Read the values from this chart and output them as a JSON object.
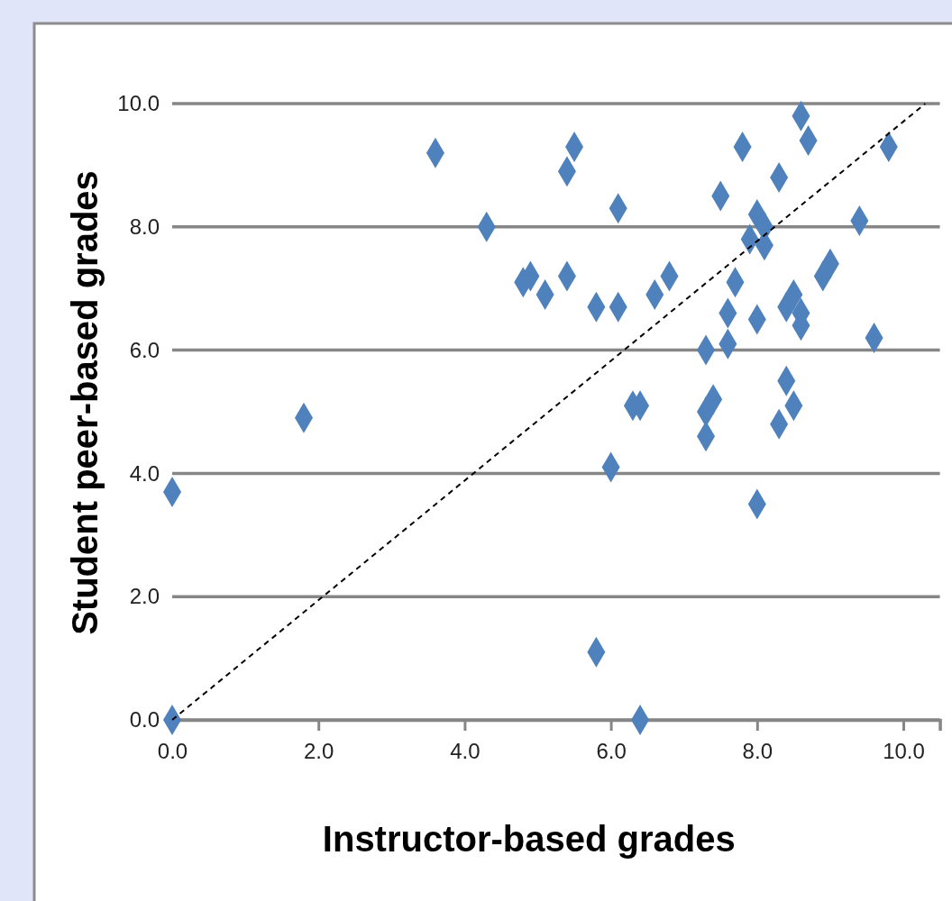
{
  "chart_data": {
    "type": "scatter",
    "xlabel": "Instructor-based grades",
    "ylabel": "Student peer-based grades",
    "xlim": [
      0,
      10.5
    ],
    "ylim": [
      0,
      10
    ],
    "xticks": [
      {
        "value": 0,
        "label": "0.0"
      },
      {
        "value": 2,
        "label": "2.0"
      },
      {
        "value": 4,
        "label": "4.0"
      },
      {
        "value": 6,
        "label": "6.0"
      },
      {
        "value": 8,
        "label": "8.0"
      },
      {
        "value": 10,
        "label": "10.0"
      }
    ],
    "yticks": [
      {
        "value": 0,
        "label": "0.0"
      },
      {
        "value": 2,
        "label": "2.0"
      },
      {
        "value": 4,
        "label": "4.0"
      },
      {
        "value": 6,
        "label": "6.0"
      },
      {
        "value": 8,
        "label": "8.0"
      },
      {
        "value": 10,
        "label": "10.0"
      }
    ],
    "grid": "y",
    "series": [
      {
        "color": "#4f81bd",
        "marker": "diamond",
        "x": [
          0,
          0,
          1.8,
          3.6,
          4.3,
          4.8,
          4.9,
          5.1,
          5.4,
          5.5,
          5.4,
          5.8,
          6.1,
          6.1,
          6.0,
          5.8,
          6.3,
          6.4,
          6.4,
          6.6,
          6.8,
          7.3,
          7.3,
          7.4,
          7.3,
          7.5,
          7.6,
          7.6,
          7.7,
          7.8,
          7.9,
          8.0,
          8.1,
          8.1,
          8.0,
          8.0,
          8.3,
          8.3,
          8.4,
          8.4,
          8.5,
          8.6,
          8.6,
          8.5,
          8.6,
          8.7,
          8.9,
          9.0,
          9.4,
          9.6,
          9.8
        ],
        "values": [
          0,
          3.7,
          4.9,
          9.2,
          8.0,
          7.1,
          7.2,
          6.9,
          8.9,
          9.3,
          7.2,
          6.7,
          8.3,
          6.7,
          4.1,
          1.1,
          5.1,
          5.1,
          0,
          6.9,
          7.2,
          6.0,
          5.0,
          5.2,
          4.6,
          8.5,
          6.6,
          6.1,
          7.1,
          9.3,
          7.8,
          8.2,
          8.0,
          7.7,
          6.5,
          3.5,
          8.8,
          4.8,
          5.5,
          6.7,
          6.9,
          6.6,
          6.4,
          5.1,
          9.8,
          9.4,
          7.2,
          7.4,
          8.1,
          6.2,
          9.3
        ]
      },
      {
        "type": "line",
        "color": "#000000",
        "marker": "none",
        "line_style": "dashed",
        "x": [
          0,
          10.3
        ],
        "values": [
          0,
          10
        ]
      }
    ]
  }
}
